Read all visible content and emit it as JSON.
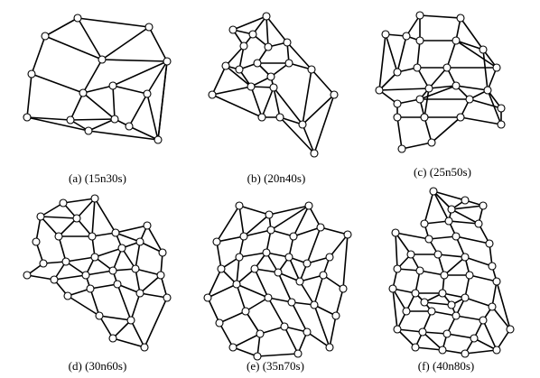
{
  "colors": {
    "background": "#ffffff",
    "stroke": "#000000",
    "node_fill": "#ffffff"
  },
  "panels": [
    {
      "caption": "(a) (15n30s)"
    },
    {
      "caption": "(b) (20n40s)"
    },
    {
      "caption": "(c) (25n50s)"
    },
    {
      "caption": "(d) (30n60s)"
    },
    {
      "caption": "(e) (35n70s)"
    },
    {
      "caption": "(f) (40n80s)"
    }
  ]
}
